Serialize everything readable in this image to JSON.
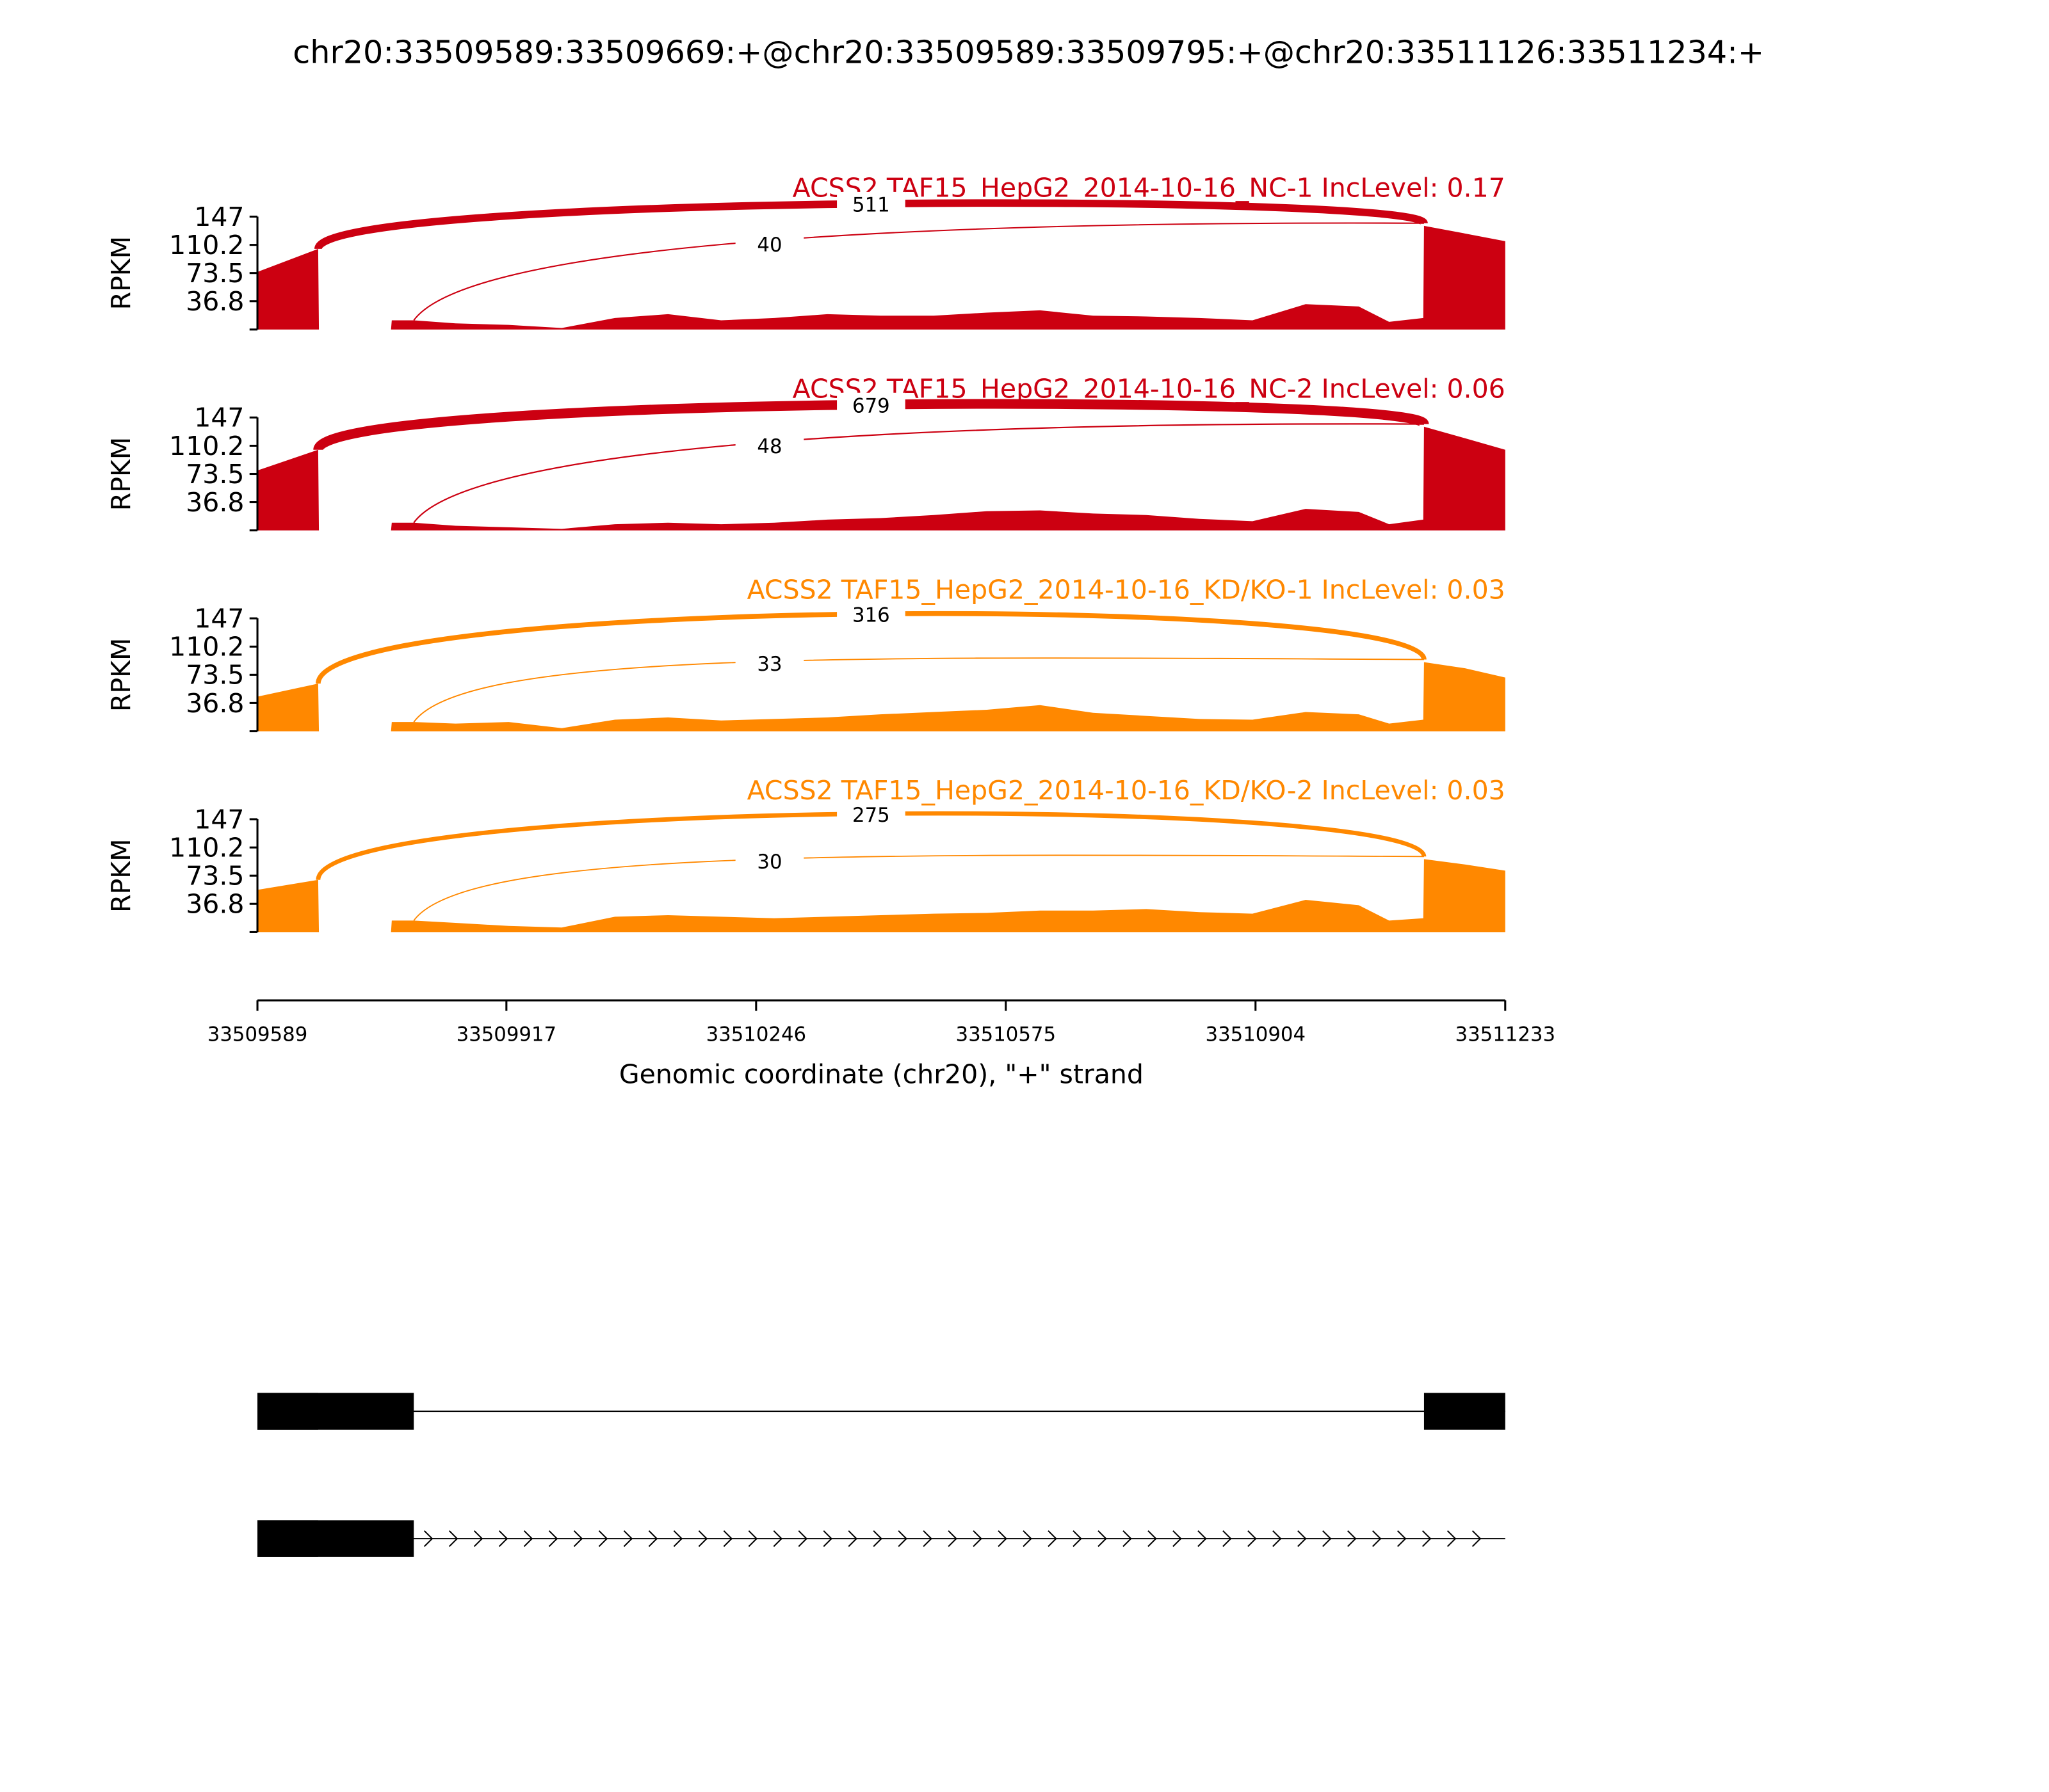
{
  "chart_data": {
    "type": "sashimi",
    "title": "chr20:33509589:33509669:+@chr20:33509589:33509795:+@chr20:33511126:33511234:+",
    "xlabel": "Genomic coordinate (chr20), \"+\" strand",
    "xlim": [
      33509589,
      33511233
    ],
    "xticks": [
      33509589,
      33509917,
      33510246,
      33510575,
      33510904,
      33511233
    ],
    "x": [
      33509589,
      33509669,
      33509670,
      33509765,
      33509766,
      33509795,
      33509850,
      33509920,
      33509990,
      33510060,
      33510130,
      33510200,
      33510270,
      33510340,
      33510410,
      33510480,
      33510550,
      33510620,
      33510690,
      33510760,
      33510830,
      33510900,
      33510970,
      33511040,
      33511080,
      33511125,
      33511126,
      33511180,
      33511233
    ],
    "panels": [
      {
        "label": "ACSS2 TAF15_HepG2_2014-10-16_NC-1 IncLevel: 0.17",
        "color": "#cc0011",
        "ylabel": "RPKM",
        "ylim": [
          0,
          147
        ],
        "yticks": [
          36.8,
          73.5,
          110.2,
          147
        ],
        "values": [
          75,
          105,
          0,
          0,
          12,
          12,
          8,
          6,
          2,
          15,
          20,
          12,
          15,
          20,
          18,
          18,
          22,
          25,
          18,
          17,
          15,
          12,
          33,
          30,
          10,
          15,
          135,
          125,
          115
        ],
        "junctions": [
          {
            "start": 33509669,
            "end": 33511126,
            "count": 511
          },
          {
            "start": 33509795,
            "end": 33511126,
            "count": 40
          }
        ]
      },
      {
        "label": "ACSS2 TAF15_HepG2_2014-10-16_NC-2 IncLevel: 0.06",
        "color": "#cc0011",
        "ylabel": "RPKM",
        "ylim": [
          0,
          147
        ],
        "yticks": [
          36.8,
          73.5,
          110.2,
          147
        ],
        "values": [
          78,
          105,
          0,
          0,
          10,
          10,
          6,
          4,
          2,
          8,
          10,
          8,
          10,
          14,
          16,
          20,
          25,
          26,
          22,
          20,
          15,
          12,
          28,
          24,
          8,
          14,
          135,
          120,
          105
        ],
        "junctions": [
          {
            "start": 33509669,
            "end": 33511126,
            "count": 679
          },
          {
            "start": 33509795,
            "end": 33511126,
            "count": 48
          }
        ]
      },
      {
        "label": "ACSS2 TAF15_HepG2_2014-10-16_KD/KO-1 IncLevel: 0.03",
        "color": "#ff8800",
        "ylabel": "RPKM",
        "ylim": [
          0,
          147
        ],
        "yticks": [
          36.8,
          73.5,
          110.2,
          147
        ],
        "values": [
          45,
          62,
          0,
          0,
          12,
          12,
          10,
          12,
          4,
          15,
          18,
          14,
          16,
          18,
          22,
          25,
          28,
          34,
          24,
          20,
          16,
          15,
          25,
          22,
          10,
          15,
          90,
          82,
          70
        ],
        "junctions": [
          {
            "start": 33509669,
            "end": 33511126,
            "count": 316
          },
          {
            "start": 33509795,
            "end": 33511126,
            "count": 33
          }
        ]
      },
      {
        "label": "ACSS2 TAF15_HepG2_2014-10-16_KD/KO-2 IncLevel: 0.03",
        "color": "#ff8800",
        "ylabel": "RPKM",
        "ylim": [
          0,
          147
        ],
        "yticks": [
          36.8,
          73.5,
          110.2,
          147
        ],
        "values": [
          55,
          68,
          0,
          0,
          15,
          15,
          12,
          8,
          6,
          20,
          22,
          20,
          18,
          20,
          22,
          24,
          25,
          28,
          28,
          30,
          26,
          24,
          42,
          35,
          15,
          18,
          95,
          88,
          80
        ],
        "junctions": [
          {
            "start": 33509669,
            "end": 33511126,
            "count": 275
          },
          {
            "start": 33509795,
            "end": 33511126,
            "count": 30
          }
        ]
      }
    ],
    "transcripts": [
      {
        "span": [
          33509589,
          33511233
        ],
        "exons": [
          [
            33509589,
            33509669
          ],
          [
            33509589,
            33509795
          ],
          [
            33511126,
            33511233
          ]
        ]
      },
      {
        "span": [
          33509589,
          33511233
        ],
        "exons": [
          [
            33509589,
            33509669
          ],
          [
            33509589,
            33509795
          ]
        ]
      }
    ]
  }
}
